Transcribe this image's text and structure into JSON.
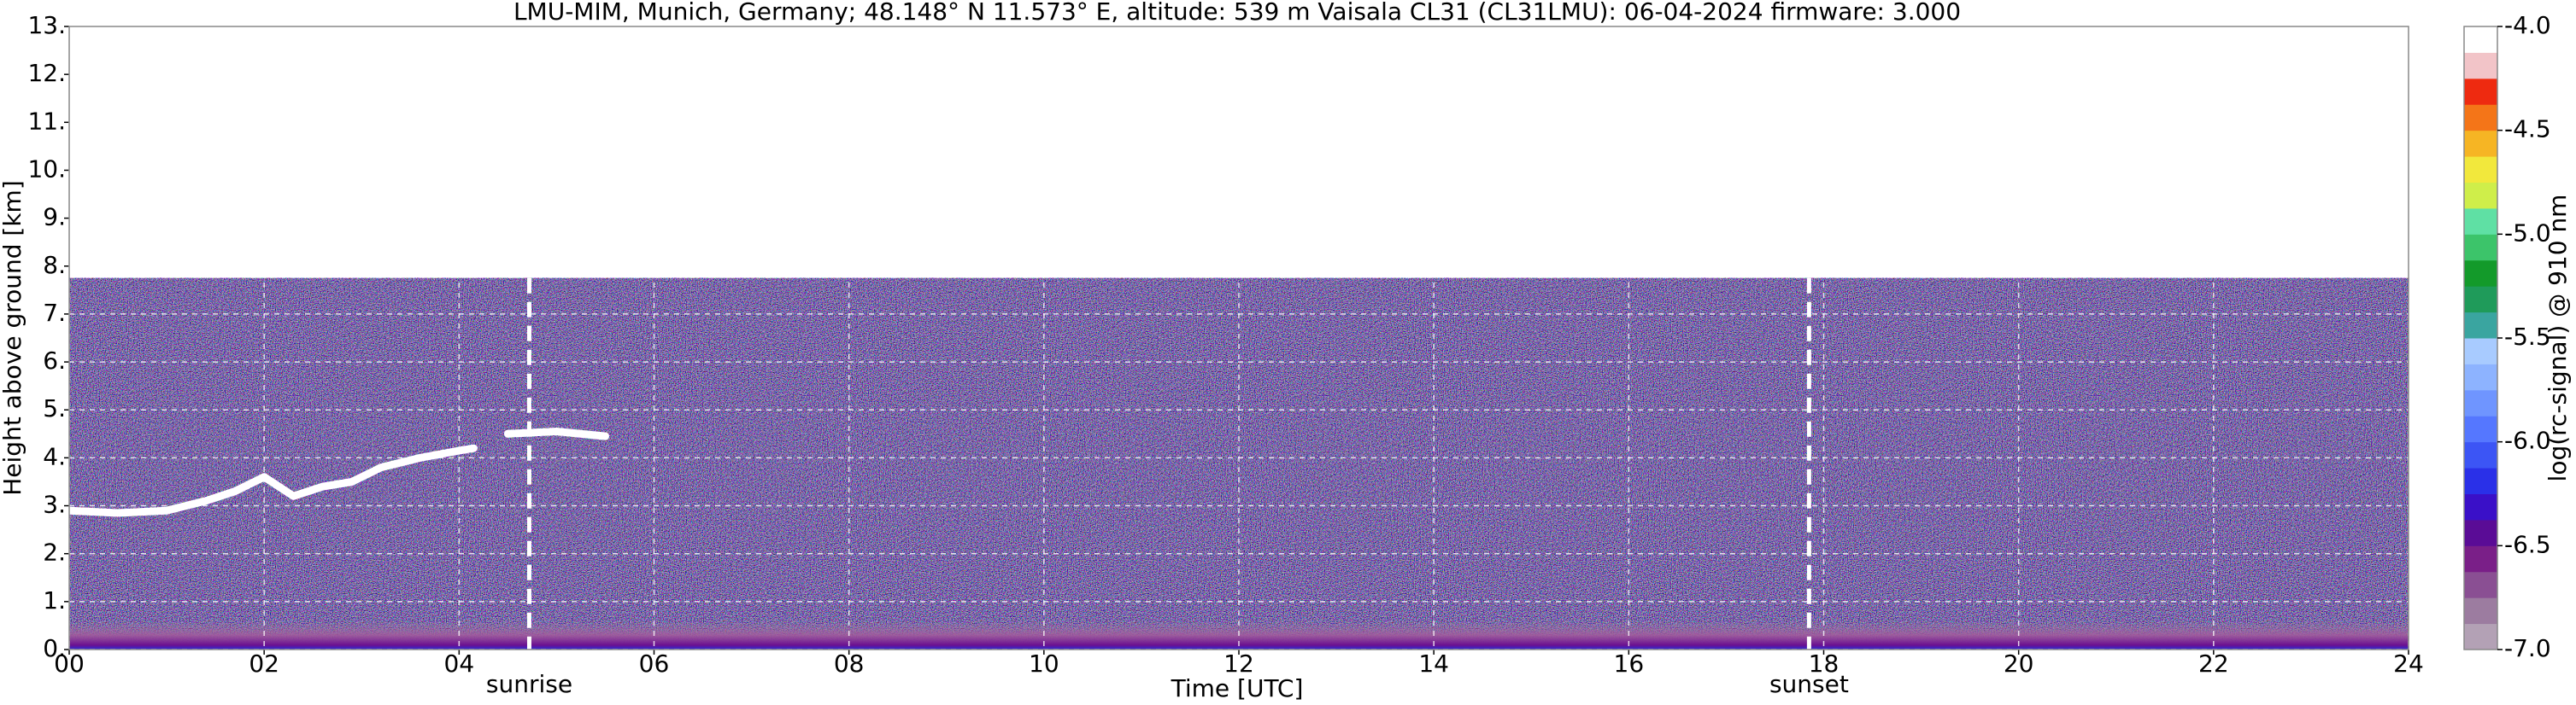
{
  "chart_data": {
    "type": "heatmap",
    "title": "LMU-MIM, Munich, Germany; 48.148° N 11.573° E, altitude: 539 m    Vaisala CL31 (CL31LMU): 06-04-2024    firmware: 3.000",
    "x_label": "Time [UTC]",
    "y_label": "Height above ground [km]",
    "xlim": [
      0,
      24
    ],
    "xticks": [
      {
        "value": 0,
        "label": "00"
      },
      {
        "value": 2,
        "label": "02"
      },
      {
        "value": 4,
        "label": "04"
      },
      {
        "value": 6,
        "label": "06"
      },
      {
        "value": 8,
        "label": "08"
      },
      {
        "value": 10,
        "label": "10"
      },
      12,
      14,
      16,
      18,
      20,
      22,
      24
    ],
    "ylim": [
      0,
      13
    ],
    "yticks": [
      {
        "value": 0,
        "label": "0."
      },
      {
        "value": 1,
        "label": "1."
      },
      {
        "value": 2,
        "label": "2."
      },
      {
        "value": 3,
        "label": "3."
      },
      {
        "value": 4,
        "label": "4."
      },
      {
        "value": 5,
        "label": "5."
      },
      {
        "value": 6,
        "label": "6."
      },
      {
        "value": 7,
        "label": "7."
      },
      {
        "value": 8,
        "label": "8."
      },
      {
        "value": 9,
        "label": "9."
      },
      {
        "value": 10,
        "label": "10."
      },
      {
        "value": 11,
        "label": "11."
      },
      {
        "value": 12,
        "label": "12."
      },
      {
        "value": 13,
        "label": "13."
      }
    ],
    "grid": true,
    "signal_top": 7.75,
    "surface_layer_top": 0.6,
    "cloud_layer": {
      "color": "#ffffff",
      "x": [
        0,
        0.5,
        1,
        1.4,
        1.7,
        2,
        2.3,
        2.6,
        2.9,
        3.2,
        3.6,
        4,
        4.15,
        null,
        4.5,
        5,
        5.5
      ],
      "y": [
        2.9,
        2.85,
        2.9,
        3.1,
        3.3,
        3.6,
        3.2,
        3.4,
        3.5,
        3.8,
        4.0,
        4.15,
        4.2,
        null,
        4.5,
        4.55,
        4.45
      ]
    },
    "annotations": [
      {
        "text": "sunrise",
        "x": 4.72
      },
      {
        "text": "sunset",
        "x": 17.85
      }
    ],
    "colorbar": {
      "label": "log(rc-signal) @ 910 nm",
      "lim": [
        -7,
        -4
      ],
      "ticks": [
        {
          "value": -4,
          "label": "-4.0"
        },
        {
          "value": -4.5,
          "label": "-4.5"
        },
        {
          "value": -5,
          "label": "-5.0"
        },
        {
          "value": -5.5,
          "label": "-5.5"
        },
        {
          "value": -6,
          "label": "-6.0"
        },
        {
          "value": -6.5,
          "label": "-6.5"
        },
        {
          "value": -7,
          "label": "-7.0"
        }
      ],
      "colors": [
        "#b3a1b5",
        "#9c7ca0",
        "#8a4f93",
        "#7a1f88",
        "#5a0c96",
        "#3a10c8",
        "#2a30e8",
        "#3c55f5",
        "#5577ff",
        "#6f95ff",
        "#8db3ff",
        "#a8cbff",
        "#3aa5a0",
        "#1f9b5a",
        "#139a2a",
        "#3cc46a",
        "#5fe0a4",
        "#cfee4a",
        "#f2e83c",
        "#f6b524",
        "#f47518",
        "#ee2a10",
        "#f2c4c8",
        "#ffffff"
      ]
    }
  }
}
